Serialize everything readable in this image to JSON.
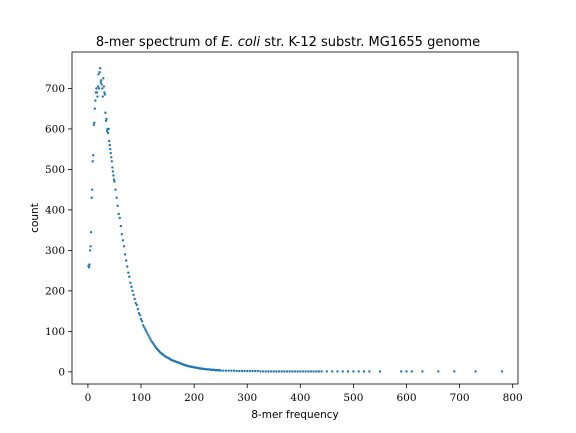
{
  "chart_data": {
    "type": "scatter",
    "title": {
      "prefix": "8-mer spectrum of ",
      "italic": "E. coli",
      "suffix": " str. K-12 substr. MG1655 genome"
    },
    "xlabel": "8-mer frequency",
    "ylabel": "count",
    "xlim": [
      -30,
      810
    ],
    "ylim": [
      -30,
      790
    ],
    "xticks": [
      0,
      100,
      200,
      300,
      400,
      500,
      600,
      700,
      800
    ],
    "yticks": [
      0,
      100,
      200,
      300,
      400,
      500,
      600,
      700
    ],
    "point_color": "#1f77b4",
    "grid": false,
    "series": [
      {
        "x": [
          1,
          2,
          3,
          4,
          5,
          6,
          7,
          8,
          9,
          10,
          11,
          12,
          13,
          14,
          15,
          16,
          17,
          18,
          19,
          20,
          21,
          22,
          23,
          24,
          25,
          26,
          27,
          28,
          29,
          30,
          31,
          32,
          33,
          34,
          35,
          36,
          37,
          38,
          39,
          40,
          41,
          42,
          43,
          44,
          45,
          46,
          47,
          48,
          49,
          50,
          52,
          54,
          56,
          58,
          60,
          62,
          64,
          66,
          68,
          70,
          72,
          74,
          76,
          78,
          80,
          82,
          84,
          86,
          88,
          90,
          92,
          94,
          96,
          98,
          100,
          102,
          104,
          106,
          108,
          110,
          112,
          114,
          116,
          118,
          120,
          122,
          124,
          126,
          128,
          130,
          132,
          134,
          136,
          138,
          140,
          142,
          144,
          146,
          148,
          150,
          152,
          154,
          156,
          158,
          160,
          162,
          164,
          166,
          168,
          170,
          172,
          174,
          176,
          178,
          180,
          182,
          184,
          186,
          188,
          190,
          192,
          194,
          196,
          198,
          200,
          202,
          204,
          206,
          208,
          210,
          212,
          214,
          216,
          218,
          220,
          222,
          224,
          226,
          228,
          230,
          232,
          234,
          236,
          238,
          240,
          242,
          244,
          246,
          248,
          250,
          255,
          260,
          265,
          270,
          275,
          280,
          285,
          290,
          295,
          300,
          305,
          310,
          315,
          320,
          325,
          330,
          335,
          340,
          345,
          350,
          355,
          360,
          365,
          370,
          375,
          380,
          385,
          390,
          395,
          400,
          405,
          410,
          415,
          420,
          425,
          430,
          435,
          440,
          450,
          460,
          470,
          480,
          490,
          500,
          510,
          520,
          530,
          550,
          590,
          600,
          610,
          630,
          660,
          690,
          730,
          780
        ],
        "y": [
          262,
          258,
          265,
          300,
          310,
          345,
          430,
          450,
          520,
          535,
          610,
          615,
          650,
          670,
          690,
          700,
          690,
          680,
          705,
          735,
          700,
          740,
          750,
          715,
          720,
          710,
          700,
          680,
          725,
          705,
          690,
          685,
          640,
          620,
          625,
          595,
          600,
          590,
          600,
          570,
          560,
          550,
          540,
          530,
          520,
          505,
          495,
          485,
          475,
          470,
          450,
          430,
          410,
          390,
          380,
          360,
          340,
          325,
          310,
          290,
          275,
          260,
          245,
          235,
          220,
          210,
          200,
          190,
          180,
          170,
          165,
          155,
          145,
          140,
          130,
          125,
          115,
          110,
          105,
          100,
          95,
          90,
          85,
          80,
          75,
          72,
          68,
          64,
          60,
          57,
          54,
          51,
          48,
          46,
          44,
          42,
          40,
          38,
          36,
          35,
          34,
          32,
          30,
          29,
          28,
          27,
          26,
          25,
          24,
          23,
          22,
          21,
          20,
          19,
          18,
          17,
          16,
          15,
          15,
          14,
          13,
          13,
          12,
          12,
          11,
          11,
          10,
          10,
          9,
          9,
          8,
          8,
          8,
          7,
          7,
          7,
          6,
          6,
          6,
          6,
          5,
          5,
          5,
          5,
          4,
          4,
          4,
          4,
          4,
          3,
          3,
          3,
          3,
          3,
          3,
          2,
          2,
          2,
          2,
          2,
          2,
          2,
          2,
          2,
          1,
          1,
          1,
          1,
          1,
          1,
          1,
          1,
          1,
          1,
          1,
          1,
          1,
          1,
          1,
          1,
          1,
          1,
          1,
          1,
          1,
          1,
          1,
          1,
          1,
          1,
          1,
          1,
          1,
          1,
          1,
          1,
          1,
          1,
          1,
          1,
          1,
          1,
          1,
          1,
          1,
          1
        ]
      }
    ]
  }
}
